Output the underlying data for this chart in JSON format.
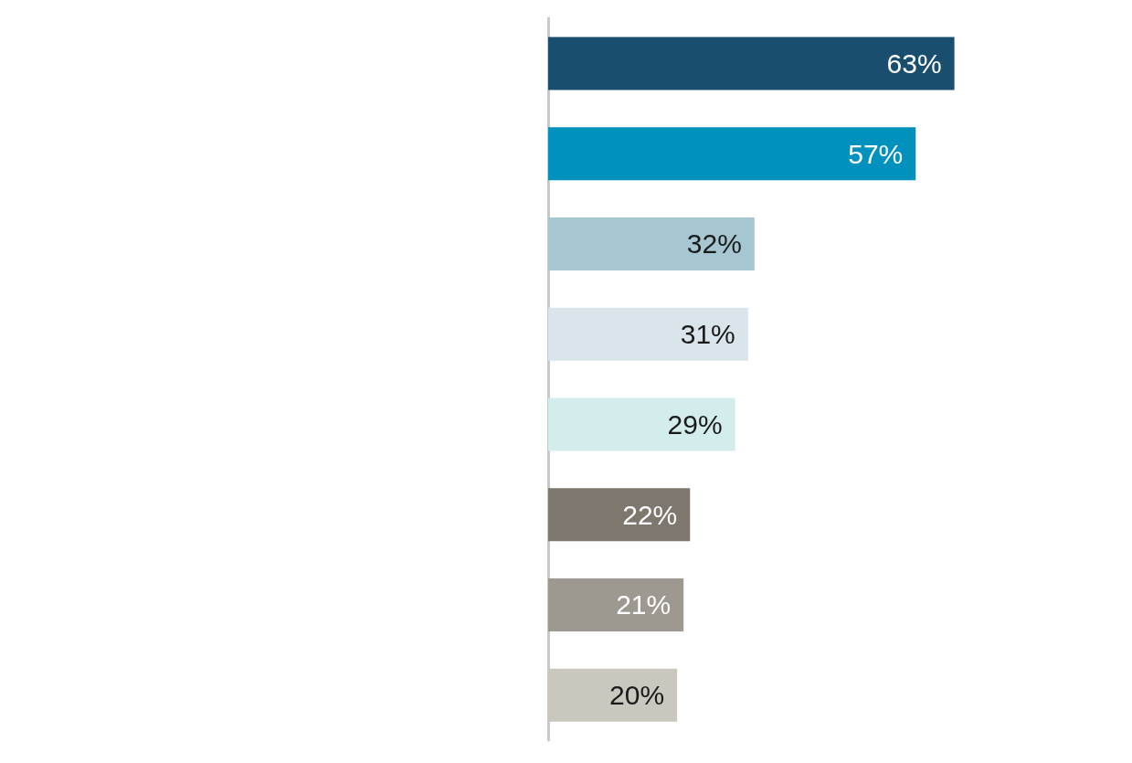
{
  "chart_data": {
    "type": "bar",
    "orientation": "horizontal",
    "categories": [
      null,
      null,
      null,
      null,
      null,
      null,
      null,
      null
    ],
    "values": [
      63,
      57,
      32,
      31,
      29,
      22,
      21,
      20
    ],
    "colors": [
      "#1a4e6e",
      "#0091bf",
      "#a6c6d2",
      "#d9e5eb",
      "#d3ecec",
      "#7d776d",
      "#9d9890",
      "#cac7bf"
    ],
    "value_labels": [
      "63%",
      "57%",
      "32%",
      "31%",
      "29%",
      "22%",
      "21%",
      "20%"
    ]
  }
}
